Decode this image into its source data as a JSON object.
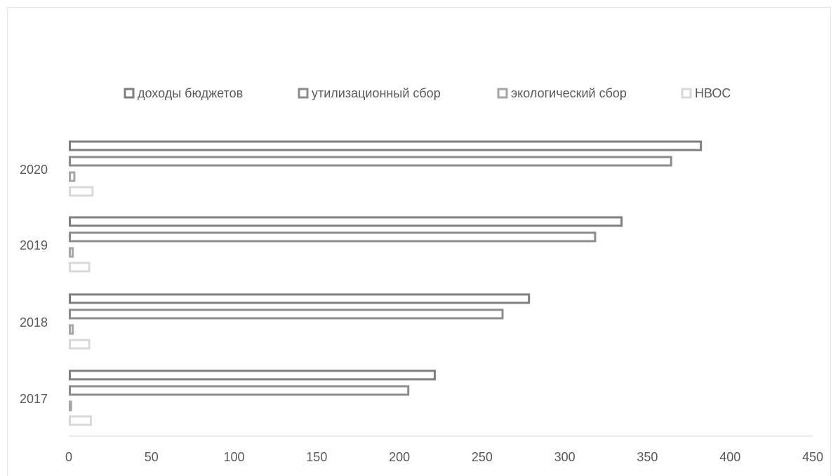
{
  "chart_data": {
    "type": "bar",
    "orientation": "horizontal",
    "categories": [
      "2017",
      "2018",
      "2019",
      "2020"
    ],
    "series": [
      {
        "name": "доходы бюджетов",
        "values": [
          222,
          279,
          335,
          383
        ],
        "color": "#7f7f7f"
      },
      {
        "name": "утилизационный сбор",
        "values": [
          206,
          263,
          319,
          365
        ],
        "color": "#8c8c8c"
      },
      {
        "name": "экологический сбор",
        "values": [
          2,
          3,
          3,
          4
        ],
        "color": "#a6a6a6"
      },
      {
        "name": "НВОС",
        "values": [
          14,
          13,
          13,
          15
        ],
        "color": "#d9d9d9"
      }
    ],
    "xlim": [
      0,
      450
    ],
    "x_ticks": [
      "0",
      "50",
      "100",
      "150",
      "200",
      "250",
      "300",
      "350",
      "400",
      "450"
    ],
    "legend_position": "top",
    "grid": false
  }
}
